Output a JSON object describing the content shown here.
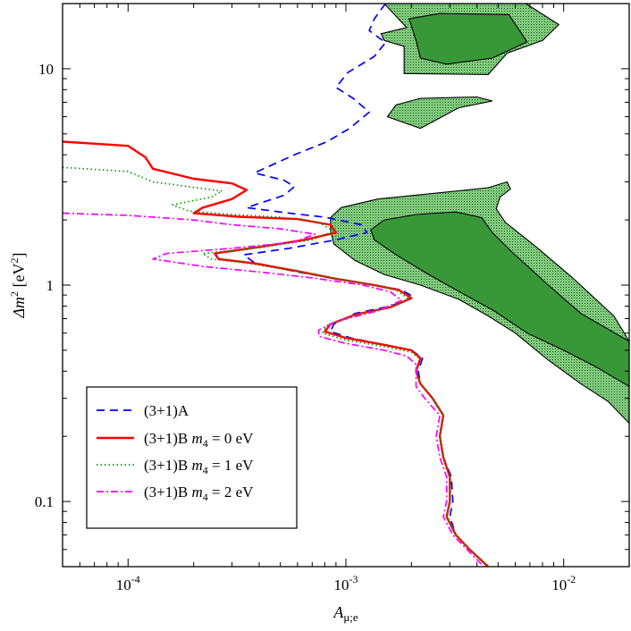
{
  "chart_data": {
    "type": "line",
    "x_scale": "log",
    "y_scale": "log",
    "xlim": [
      5e-05,
      0.02
    ],
    "ylim": [
      0.05,
      20
    ],
    "xlabel": {
      "base": "A",
      "sub": "μ;e"
    },
    "ylabel": {
      "text": "Δm",
      "sup": "2",
      "unit": " [eV",
      "unit_sup": "2",
      "close": "]"
    },
    "x_ticks": [
      {
        "value": 0.0001,
        "base": "10",
        "exp": "-4"
      },
      {
        "value": 0.001,
        "base": "10",
        "exp": "-3"
      },
      {
        "value": 0.01,
        "base": "10",
        "exp": "-2"
      }
    ],
    "y_ticks": [
      {
        "value": 0.1,
        "label": "0.1"
      },
      {
        "value": 1,
        "label": "1"
      },
      {
        "value": 10,
        "label": "10"
      }
    ],
    "grid": false,
    "legend": {
      "position": "bottom-left"
    },
    "series": [
      {
        "name": "(3+1)A",
        "color": "#0000ff",
        "dash": "9,6",
        "points": [
          [
            0.00152,
            20
          ],
          [
            0.00135,
            17
          ],
          [
            0.00128,
            15
          ],
          [
            0.00152,
            13.2
          ],
          [
            0.00135,
            11.4
          ],
          [
            0.00102,
            9.6
          ],
          [
            0.0009,
            8.2
          ],
          [
            0.00108,
            7.3
          ],
          [
            0.00128,
            6.3
          ],
          [
            0.00104,
            5.3
          ],
          [
            0.00082,
            4.6
          ],
          [
            0.00058,
            4.0
          ],
          [
            0.00038,
            3.3
          ],
          [
            0.00052,
            3.05
          ],
          [
            0.00058,
            2.85
          ],
          [
            0.00052,
            2.6
          ],
          [
            0.00035,
            2.28
          ],
          [
            0.00055,
            2.15
          ],
          [
            0.0008,
            2.06
          ],
          [
            0.00118,
            1.9
          ],
          [
            0.00125,
            1.75
          ],
          [
            0.0009,
            1.62
          ],
          [
            0.00055,
            1.48
          ],
          [
            0.00034,
            1.38
          ],
          [
            0.00038,
            1.27
          ],
          [
            0.0006,
            1.15
          ],
          [
            0.0009,
            1.07
          ],
          [
            0.00135,
            1.0
          ],
          [
            0.0018,
            0.95
          ],
          [
            0.00205,
            0.88
          ],
          [
            0.0016,
            0.8
          ],
          [
            0.0011,
            0.74
          ],
          [
            0.00088,
            0.66
          ],
          [
            0.00085,
            0.61
          ],
          [
            0.00105,
            0.57
          ],
          [
            0.0015,
            0.53
          ],
          [
            0.002,
            0.5
          ],
          [
            0.00225,
            0.46
          ],
          [
            0.00215,
            0.4
          ],
          [
            0.0022,
            0.35
          ],
          [
            0.0025,
            0.3
          ],
          [
            0.0028,
            0.25
          ],
          [
            0.0027,
            0.2
          ],
          [
            0.0028,
            0.16
          ],
          [
            0.00305,
            0.13
          ],
          [
            0.0031,
            0.1
          ],
          [
            0.003,
            0.085
          ],
          [
            0.0032,
            0.07
          ],
          [
            0.0037,
            0.06
          ],
          [
            0.0045,
            0.05
          ]
        ]
      },
      {
        "name": "(3+1)B m4 = 0 eV",
        "name_parts": {
          "pre": "(3+1)B ",
          "var": "m",
          "sub": "4",
          "post": " = 0 eV"
        },
        "color": "#ff0000",
        "dash": "none",
        "points": [
          [
            5e-05,
            4.6
          ],
          [
            0.0001,
            4.4
          ],
          [
            0.00012,
            3.9
          ],
          [
            0.00013,
            3.45
          ],
          [
            0.0002,
            3.1
          ],
          [
            0.0003,
            2.95
          ],
          [
            0.00035,
            2.75
          ],
          [
            0.0003,
            2.5
          ],
          [
            0.00022,
            2.28
          ],
          [
            0.0002,
            2.15
          ],
          [
            0.00032,
            2.07
          ],
          [
            0.0006,
            2.02
          ],
          [
            0.00085,
            1.9
          ],
          [
            0.0009,
            1.75
          ],
          [
            0.00065,
            1.62
          ],
          [
            0.0004,
            1.5
          ],
          [
            0.00025,
            1.4
          ],
          [
            0.00026,
            1.32
          ],
          [
            0.00038,
            1.26
          ],
          [
            0.0006,
            1.16
          ],
          [
            0.0009,
            1.07
          ],
          [
            0.00135,
            1.0
          ],
          [
            0.00175,
            0.95
          ],
          [
            0.002,
            0.87
          ],
          [
            0.0016,
            0.79
          ],
          [
            0.0011,
            0.73
          ],
          [
            0.00085,
            0.66
          ],
          [
            0.0008,
            0.61
          ],
          [
            0.001,
            0.57
          ],
          [
            0.0015,
            0.53
          ],
          [
            0.002,
            0.5
          ],
          [
            0.0022,
            0.46
          ],
          [
            0.0021,
            0.4
          ],
          [
            0.0022,
            0.35
          ],
          [
            0.0025,
            0.3
          ],
          [
            0.0028,
            0.25
          ],
          [
            0.0027,
            0.2
          ],
          [
            0.0028,
            0.16
          ],
          [
            0.003,
            0.13
          ],
          [
            0.003,
            0.1
          ],
          [
            0.0029,
            0.085
          ],
          [
            0.0032,
            0.07
          ],
          [
            0.0037,
            0.06
          ],
          [
            0.0045,
            0.05
          ]
        ]
      },
      {
        "name": "(3+1)B m4 = 1 eV",
        "name_parts": {
          "pre": "(3+1)B ",
          "var": "m",
          "sub": "4",
          "post": " = 1 eV"
        },
        "color": "#00a000",
        "dash": "1.5,3",
        "points": [
          [
            5e-05,
            3.5
          ],
          [
            0.0001,
            3.35
          ],
          [
            0.00013,
            3.0
          ],
          [
            0.00019,
            2.85
          ],
          [
            0.00027,
            2.72
          ],
          [
            0.00024,
            2.55
          ],
          [
            0.00016,
            2.35
          ],
          [
            0.00019,
            2.2
          ],
          [
            0.0003,
            2.12
          ],
          [
            0.0005,
            2.06
          ],
          [
            0.00075,
            1.95
          ],
          [
            0.00088,
            1.78
          ],
          [
            0.0007,
            1.62
          ],
          [
            0.00042,
            1.5
          ],
          [
            0.00022,
            1.4
          ],
          [
            0.00024,
            1.32
          ],
          [
            0.00036,
            1.26
          ],
          [
            0.00058,
            1.16
          ],
          [
            0.0009,
            1.07
          ],
          [
            0.0013,
            1.0
          ],
          [
            0.0017,
            0.95
          ],
          [
            0.00195,
            0.86
          ],
          [
            0.0015,
            0.78
          ],
          [
            0.00105,
            0.72
          ],
          [
            0.00082,
            0.65
          ],
          [
            0.00078,
            0.6
          ],
          [
            0.00098,
            0.56
          ],
          [
            0.0015,
            0.52
          ],
          [
            0.002,
            0.49
          ],
          [
            0.00222,
            0.45
          ],
          [
            0.0021,
            0.4
          ],
          [
            0.0022,
            0.35
          ],
          [
            0.0025,
            0.3
          ],
          [
            0.0028,
            0.25
          ],
          [
            0.0027,
            0.2
          ],
          [
            0.0028,
            0.16
          ],
          [
            0.003,
            0.13
          ],
          [
            0.003,
            0.1
          ],
          [
            0.0029,
            0.085
          ],
          [
            0.0032,
            0.07
          ],
          [
            0.0037,
            0.06
          ],
          [
            0.0045,
            0.05
          ]
        ]
      },
      {
        "name": "(3+1)B m4 = 2 eV",
        "name_parts": {
          "pre": "(3+1)B ",
          "var": "m",
          "sub": "4",
          "post": " = 2 eV"
        },
        "color": "#ff00ff",
        "dash": "8,3,2,3",
        "points": [
          [
            5e-05,
            2.15
          ],
          [
            0.0001,
            2.1
          ],
          [
            0.0002,
            2.0
          ],
          [
            0.0003,
            1.9
          ],
          [
            0.0005,
            1.82
          ],
          [
            0.00072,
            1.72
          ],
          [
            0.00058,
            1.58
          ],
          [
            0.0003,
            1.48
          ],
          [
            0.00015,
            1.4
          ],
          [
            0.00013,
            1.32
          ],
          [
            0.00022,
            1.22
          ],
          [
            0.0004,
            1.15
          ],
          [
            0.0007,
            1.08
          ],
          [
            0.0012,
            1.0
          ],
          [
            0.0016,
            0.93
          ],
          [
            0.0018,
            0.85
          ],
          [
            0.0014,
            0.76
          ],
          [
            0.0009,
            0.68
          ],
          [
            0.00075,
            0.62
          ],
          [
            0.00075,
            0.58
          ],
          [
            0.00098,
            0.54
          ],
          [
            0.0015,
            0.5
          ],
          [
            0.0019,
            0.47
          ],
          [
            0.0021,
            0.43
          ],
          [
            0.0021,
            0.38
          ],
          [
            0.0021,
            0.34
          ],
          [
            0.0023,
            0.3
          ],
          [
            0.0027,
            0.25
          ],
          [
            0.0026,
            0.2
          ],
          [
            0.0027,
            0.16
          ],
          [
            0.0029,
            0.13
          ],
          [
            0.0029,
            0.1
          ],
          [
            0.0028,
            0.085
          ],
          [
            0.0031,
            0.07
          ],
          [
            0.0036,
            0.06
          ],
          [
            0.0043,
            0.05
          ]
        ]
      }
    ],
    "regions": [
      {
        "fill": "#6abf69",
        "style": "dotted",
        "points": [
          [
            0.0015,
            20
          ],
          [
            0.0019,
            15.5
          ],
          [
            0.00145,
            14.5
          ],
          [
            0.0015,
            13.5
          ],
          [
            0.00185,
            12.7
          ],
          [
            0.00185,
            9.5
          ],
          [
            0.0045,
            9.4
          ],
          [
            0.0055,
            11.8
          ],
          [
            0.008,
            13.5
          ],
          [
            0.0095,
            16
          ],
          [
            0.0067,
            20
          ]
        ]
      },
      {
        "fill": "#389838",
        "style": "solid",
        "points": [
          [
            0.00195,
            17
          ],
          [
            0.0027,
            18
          ],
          [
            0.0056,
            17.8
          ],
          [
            0.0068,
            13.3
          ],
          [
            0.0047,
            11.2
          ],
          [
            0.0029,
            10.5
          ],
          [
            0.0022,
            11.2
          ],
          [
            0.0021,
            13.5
          ]
        ]
      },
      {
        "fill": "#6abf69",
        "style": "dotted",
        "points": [
          [
            0.00155,
            6.0
          ],
          [
            0.0017,
            6.8
          ],
          [
            0.0022,
            7.3
          ],
          [
            0.004,
            7.4
          ],
          [
            0.0047,
            7.1
          ],
          [
            0.0033,
            6.6
          ],
          [
            0.0022,
            5.3
          ]
        ]
      },
      {
        "fill": "#6abf69",
        "style": "dotted",
        "points": [
          [
            0.00085,
            2.05
          ],
          [
            0.00095,
            2.28
          ],
          [
            0.0014,
            2.5
          ],
          [
            0.0026,
            2.66
          ],
          [
            0.0045,
            2.82
          ],
          [
            0.0055,
            3.0
          ],
          [
            0.0057,
            2.78
          ],
          [
            0.0051,
            2.55
          ],
          [
            0.0049,
            2.25
          ],
          [
            0.0054,
            1.95
          ],
          [
            0.0075,
            1.5
          ],
          [
            0.011,
            1.08
          ],
          [
            0.017,
            0.72
          ],
          [
            0.02,
            0.55
          ],
          [
            0.02,
            0.23
          ],
          [
            0.016,
            0.29
          ],
          [
            0.012,
            0.35
          ],
          [
            0.0085,
            0.45
          ],
          [
            0.006,
            0.6
          ],
          [
            0.0045,
            0.72
          ],
          [
            0.0033,
            0.86
          ],
          [
            0.0022,
            1.0
          ],
          [
            0.0015,
            1.12
          ],
          [
            0.0011,
            1.3
          ],
          [
            0.00088,
            1.55
          ],
          [
            0.00085,
            1.8
          ]
        ]
      },
      {
        "fill": "#389838",
        "style": "solid",
        "points": [
          [
            0.0013,
            1.8
          ],
          [
            0.0015,
            2.0
          ],
          [
            0.0021,
            2.12
          ],
          [
            0.0032,
            2.18
          ],
          [
            0.0042,
            2.05
          ],
          [
            0.0047,
            1.75
          ],
          [
            0.0058,
            1.42
          ],
          [
            0.0085,
            1.0
          ],
          [
            0.012,
            0.74
          ],
          [
            0.02,
            0.55
          ],
          [
            0.02,
            0.34
          ],
          [
            0.014,
            0.42
          ],
          [
            0.01,
            0.5
          ],
          [
            0.0068,
            0.6
          ],
          [
            0.0048,
            0.76
          ],
          [
            0.0034,
            0.92
          ],
          [
            0.0024,
            1.12
          ],
          [
            0.0017,
            1.38
          ],
          [
            0.00135,
            1.62
          ]
        ]
      }
    ]
  }
}
